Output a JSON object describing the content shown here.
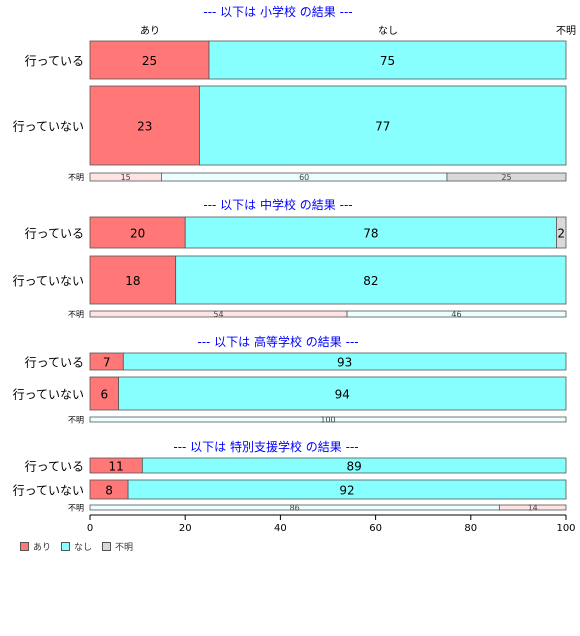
{
  "chart_data": {
    "type": "bar",
    "orientation": "horizontal",
    "stacked": true,
    "percent": true,
    "series_names": [
      "あり",
      "なし",
      "不明"
    ],
    "colors": {
      "あり": "#ff7777",
      "なし": "#88ffff",
      "不明": "#d9d9d9",
      "title": "#0000ff"
    },
    "xlim": [
      0,
      100
    ],
    "x_ticks": [
      0,
      20,
      40,
      60,
      80,
      100
    ],
    "top_labels": [
      "あり",
      "なし",
      "不明"
    ],
    "legend_position": "bottom-left",
    "panels": [
      {
        "title": "--- 以下は 小学校 の結果 ---",
        "rows": [
          {
            "label": "行っている",
            "values": [
              25,
              75,
              0
            ],
            "labels": [
              "25",
              "75",
              ""
            ]
          },
          {
            "label": "行っていない",
            "values": [
              23,
              77,
              0
            ],
            "labels": [
              "23",
              "77",
              ""
            ]
          },
          {
            "label": "不明",
            "values": [
              15,
              60,
              25
            ],
            "labels": [
              "15",
              "60",
              "25"
            ]
          }
        ]
      },
      {
        "title": "--- 以下は 中学校 の結果 ---",
        "rows": [
          {
            "label": "行っている",
            "values": [
              20,
              78,
              2
            ],
            "labels": [
              "20",
              "78",
              "2"
            ]
          },
          {
            "label": "行っていない",
            "values": [
              18,
              82,
              0
            ],
            "labels": [
              "18",
              "82",
              ""
            ]
          },
          {
            "label": "不明",
            "values": [
              54,
              46,
              0
            ],
            "labels": [
              "54",
              "46",
              ""
            ]
          }
        ]
      },
      {
        "title": "--- 以下は 高等学校 の結果 ---",
        "rows": [
          {
            "label": "行っている",
            "values": [
              7,
              93,
              0
            ],
            "labels": [
              "7",
              "93",
              ""
            ]
          },
          {
            "label": "行っていない",
            "values": [
              6,
              94,
              0
            ],
            "labels": [
              "6",
              "94",
              ""
            ]
          },
          {
            "label": "不明",
            "values": [
              0,
              100,
              0
            ],
            "labels": [
              "",
              "100",
              ""
            ]
          }
        ]
      },
      {
        "title": "--- 以下は 特別支援学校 の結果 ---",
        "rows": [
          {
            "label": "行っている",
            "values": [
              11,
              89,
              0
            ],
            "labels": [
              "11",
              "89",
              ""
            ]
          },
          {
            "label": "行っていない",
            "values": [
              8,
              92,
              0
            ],
            "labels": [
              "8",
              "92",
              ""
            ]
          },
          {
            "label": "不明",
            "values": [
              86,
              0,
              14
            ],
            "labels": [
              "86",
              "",
              "14"
            ],
            "colors": [
              "#88ffff",
              "#88ffff",
              "#ff7777"
            ]
          }
        ]
      }
    ]
  }
}
